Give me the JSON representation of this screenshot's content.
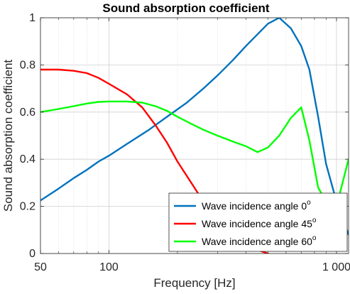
{
  "chart_data": {
    "type": "line",
    "title": "Sound absorption coefficient",
    "xlabel": "Frequency [Hz]",
    "ylabel": "Sound absorption coefficient",
    "xscale": "log",
    "xlim": [
      50,
      1130
    ],
    "ylim": [
      0,
      1
    ],
    "xticks": [
      50,
      100,
      1000
    ],
    "xtick_labels": [
      "50",
      "100",
      "1 000"
    ],
    "yticks": [
      0,
      0.2,
      0.4,
      0.6,
      0.8,
      1
    ],
    "ytick_labels": [
      "0",
      "0.2",
      "0.4",
      "0.6",
      "0.8",
      "1"
    ],
    "grid": true,
    "minor_grid": true,
    "legend_position": "bottom-right",
    "series": [
      {
        "name": "Wave incidence angle 0",
        "name_sup": "o",
        "color": "#0072BD",
        "x": [
          50,
          60,
          70,
          80,
          90,
          100,
          120,
          150,
          180,
          220,
          260,
          300,
          350,
          400,
          450,
          500,
          560,
          630,
          700,
          760,
          830,
          900,
          1000,
          1130
        ],
        "y": [
          0.225,
          0.275,
          0.32,
          0.355,
          0.39,
          0.415,
          0.465,
          0.525,
          0.58,
          0.64,
          0.7,
          0.755,
          0.82,
          0.88,
          0.93,
          0.975,
          1.0,
          0.955,
          0.88,
          0.78,
          0.58,
          0.38,
          0.22,
          0.08
        ]
      },
      {
        "name": "Wave incidence angle 45",
        "name_sup": "o",
        "color": "#FF0000",
        "x": [
          50,
          60,
          70,
          80,
          90,
          100,
          120,
          140,
          160,
          180,
          200,
          230,
          260,
          300,
          350,
          400,
          450,
          500
        ],
        "y": [
          0.78,
          0.78,
          0.775,
          0.765,
          0.745,
          0.72,
          0.675,
          0.62,
          0.545,
          0.47,
          0.39,
          0.3,
          0.22,
          0.13,
          0.07,
          0.035,
          0.015,
          0.0
        ]
      },
      {
        "name": "Wave incidence angle 60",
        "name_sup": "o",
        "color": "#00FF00",
        "x": [
          50,
          60,
          70,
          80,
          90,
          100,
          120,
          140,
          160,
          180,
          200,
          230,
          260,
          300,
          350,
          400,
          450,
          500,
          560,
          630,
          700,
          760,
          830,
          900,
          1000,
          1130
        ],
        "y": [
          0.6,
          0.613,
          0.625,
          0.636,
          0.643,
          0.645,
          0.645,
          0.64,
          0.625,
          0.605,
          0.58,
          0.55,
          0.525,
          0.5,
          0.475,
          0.455,
          0.43,
          0.45,
          0.5,
          0.575,
          0.62,
          0.48,
          0.28,
          0.22,
          0.2,
          0.4
        ]
      }
    ]
  }
}
